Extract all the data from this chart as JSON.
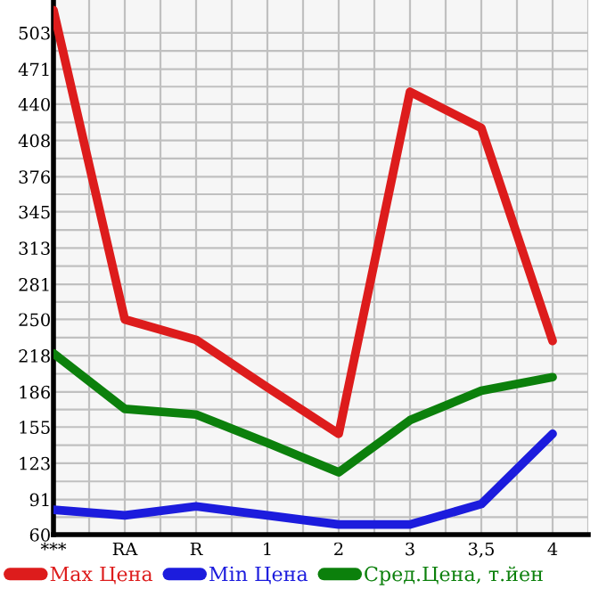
{
  "chart_data": {
    "type": "line",
    "categories": [
      "***",
      "RA",
      "R",
      "1",
      "2",
      "3",
      "3,5",
      "4"
    ],
    "series": [
      {
        "name": "Max Цена",
        "color": "#dd1c1c",
        "values": [
          523,
          250,
          232,
          190,
          149,
          451,
          419,
          231
        ]
      },
      {
        "name": "Min Цена",
        "color": "#1c1cdd",
        "values": [
          82,
          77,
          85,
          77,
          69,
          69,
          87,
          149
        ]
      },
      {
        "name": "Сред.Цена, т.йен",
        "color": "#0c800c",
        "values": [
          220,
          171,
          166,
          141,
          115,
          161,
          187,
          199
        ]
      }
    ],
    "ylim": [
      60,
      532
    ],
    "yticks": [
      60,
      91,
      123,
      155,
      186,
      218,
      250,
      281,
      313,
      345,
      376,
      408,
      440,
      471,
      503
    ],
    "grid": true,
    "legend": "bottom",
    "marker": "none",
    "line_style": "solid"
  }
}
